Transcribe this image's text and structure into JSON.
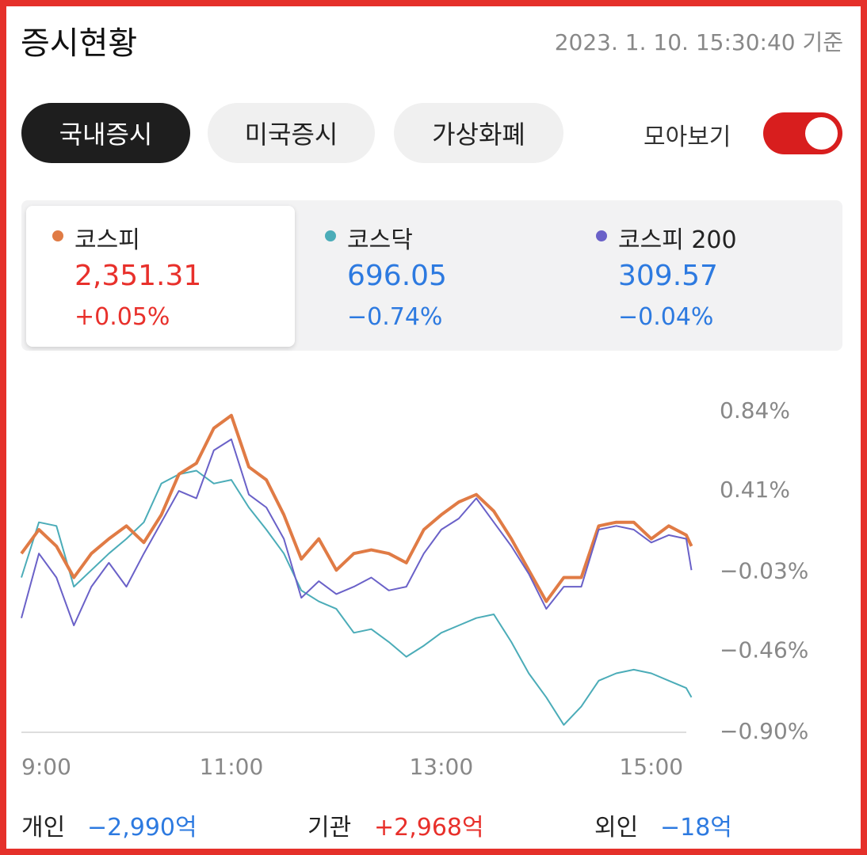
{
  "header": {
    "title": "증시현황",
    "timestamp": "2023. 1. 10. 15:30:40 기준"
  },
  "tabs": [
    "국내증시",
    "미국증시",
    "가상화폐"
  ],
  "toggle_label": "모아보기",
  "indices": [
    {
      "name": "코스피",
      "value": "2,351.31",
      "change": "+0.05%",
      "dot_color": "#e07b45",
      "text_color": "#e8302b"
    },
    {
      "name": "코스닥",
      "value": "696.05",
      "change": "−0.74%",
      "dot_color": "#4bacb8",
      "text_color": "#2d7ae0"
    },
    {
      "name": "코스피 200",
      "value": "309.57",
      "change": "−0.04%",
      "dot_color": "#6a61c8",
      "text_color": "#2d7ae0"
    }
  ],
  "chart_data": {
    "type": "line",
    "x": [
      540,
      550,
      560,
      570,
      580,
      590,
      600,
      610,
      620,
      630,
      640,
      650,
      660,
      670,
      680,
      690,
      700,
      710,
      720,
      730,
      740,
      750,
      760,
      770,
      780,
      790,
      800,
      810,
      820,
      830,
      840,
      850,
      860,
      870,
      880,
      890,
      900,
      910,
      920,
      923
    ],
    "xlim": [
      540,
      930
    ],
    "xticks": [
      {
        "value": 540,
        "label": "9:00"
      },
      {
        "value": 660,
        "label": "11:00"
      },
      {
        "value": 780,
        "label": "13:00"
      },
      {
        "value": 900,
        "label": "15:00"
      }
    ],
    "ylim": [
      -0.9,
      0.84
    ],
    "yticks": [
      {
        "value": 0.84,
        "label": "0.84%"
      },
      {
        "value": 0.41,
        "label": "0.41%"
      },
      {
        "value": -0.03,
        "label": "−0.03%"
      },
      {
        "value": -0.46,
        "label": "−0.46%"
      },
      {
        "value": -0.9,
        "label": "−0.90%"
      }
    ],
    "series": [
      {
        "name": "코스닥",
        "color": "#4bacb8",
        "width": 2,
        "values": [
          -0.06,
          0.24,
          0.22,
          -0.11,
          -0.02,
          0.07,
          0.15,
          0.24,
          0.45,
          0.5,
          0.52,
          0.45,
          0.47,
          0.32,
          0.2,
          0.07,
          -0.13,
          -0.19,
          -0.23,
          -0.36,
          -0.34,
          -0.41,
          -0.49,
          -0.43,
          -0.36,
          -0.32,
          -0.28,
          -0.26,
          -0.41,
          -0.58,
          -0.71,
          -0.86,
          -0.76,
          -0.62,
          -0.58,
          -0.56,
          -0.58,
          -0.62,
          -0.66,
          -0.71
        ]
      },
      {
        "name": "코스피",
        "color": "#e07b45",
        "width": 4,
        "values": [
          0.07,
          0.2,
          0.11,
          -0.06,
          0.07,
          0.15,
          0.22,
          0.13,
          0.28,
          0.5,
          0.56,
          0.75,
          0.82,
          0.54,
          0.47,
          0.28,
          0.04,
          0.15,
          -0.02,
          0.07,
          0.09,
          0.07,
          0.02,
          0.2,
          0.28,
          0.35,
          0.39,
          0.3,
          0.15,
          -0.02,
          -0.19,
          -0.06,
          -0.06,
          0.22,
          0.24,
          0.24,
          0.15,
          0.22,
          0.17,
          0.11
        ]
      },
      {
        "name": "코스피 200",
        "color": "#6a61c8",
        "width": 2,
        "values": [
          -0.28,
          0.07,
          -0.06,
          -0.32,
          -0.11,
          0.02,
          -0.11,
          0.07,
          0.24,
          0.41,
          0.37,
          0.63,
          0.69,
          0.39,
          0.32,
          0.15,
          -0.17,
          -0.08,
          -0.15,
          -0.11,
          -0.06,
          -0.13,
          -0.11,
          0.07,
          0.2,
          0.26,
          0.37,
          0.24,
          0.11,
          -0.04,
          -0.23,
          -0.11,
          -0.11,
          0.2,
          0.22,
          0.2,
          0.13,
          0.17,
          0.15,
          -0.02
        ]
      }
    ]
  },
  "investors": [
    {
      "name": "개인",
      "amount": "−2,990억",
      "color": "#2d7ae0"
    },
    {
      "name": "기관",
      "amount": "+2,968억",
      "color": "#e8302b"
    },
    {
      "name": "외인",
      "amount": "−18억",
      "color": "#2d7ae0"
    }
  ]
}
